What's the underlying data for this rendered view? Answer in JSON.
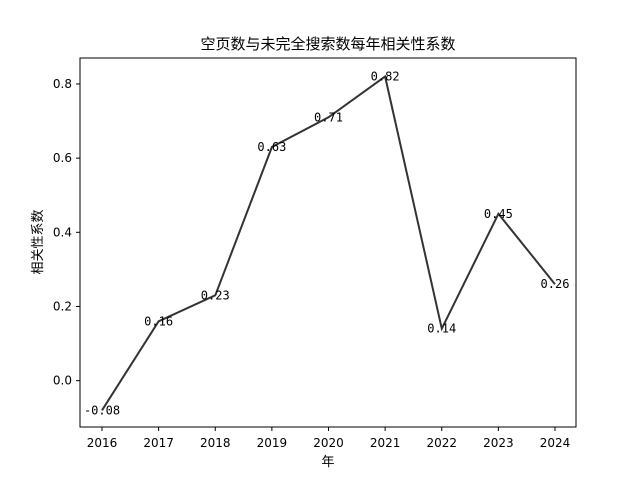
{
  "chart_data": {
    "type": "line",
    "title": "空页数与未完全搜索数每年相关性系数",
    "xlabel": "年",
    "ylabel": "相关性系数",
    "x": [
      "2016",
      "2017",
      "2018",
      "2019",
      "2020",
      "2021",
      "2022",
      "2023",
      "2024"
    ],
    "series": [
      {
        "values": [
          -0.08,
          0.16,
          0.23,
          0.63,
          0.71,
          0.82,
          0.14,
          0.45,
          0.26
        ]
      }
    ],
    "data_labels": [
      "-0.08",
      "0.16",
      "0.23",
      "0.63",
      "0.71",
      "0.82",
      "0.14",
      "0.45",
      "0.26"
    ],
    "y_ticks": [
      0.0,
      0.2,
      0.4,
      0.6,
      0.8
    ],
    "y_tick_labels": [
      "0.0",
      "0.2",
      "0.4",
      "0.6",
      "0.8"
    ],
    "ylim": [
      -0.125,
      0.87
    ],
    "grid": false,
    "line_color": "#333333"
  }
}
